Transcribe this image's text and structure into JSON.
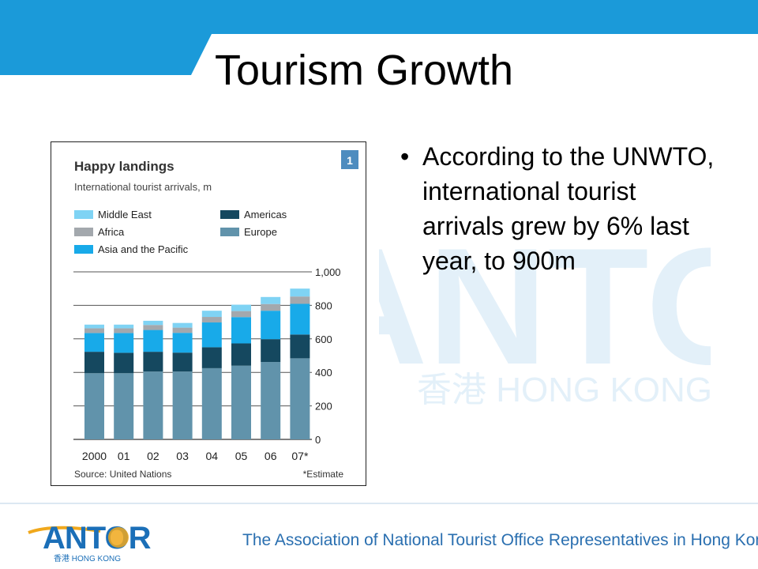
{
  "slide": {
    "title": "Tourism Growth",
    "bullets": [
      "According to the UNWTO, international tourist arrivals grew by 6% last year, to 900m"
    ]
  },
  "watermark": {
    "logo_text": "ANTOR",
    "subtitle": "香港 HONG KONG"
  },
  "footer": {
    "logo_text": "ANTOR",
    "logo_sub": "香港 HONG KONG",
    "tagline": "The Association of National Tourist Office Representatives in Hong Kong"
  },
  "colors": {
    "header_blue": "#1b9ad9",
    "middle_east": "#7fd3f4",
    "africa": "#a3a8ad",
    "asia_pacific": "#18aae9",
    "americas": "#15485f",
    "europe": "#6193ab",
    "badge": "#4d8cbf",
    "footer_text": "#2a6fb0"
  },
  "chart_data": {
    "type": "bar",
    "stacked": true,
    "title": "Happy landings",
    "subtitle": "International tourist arrivals, m",
    "badge": "1",
    "source": "Source: United Nations",
    "footnote": "*Estimate",
    "categories": [
      "2000",
      "01",
      "02",
      "03",
      "04",
      "05",
      "06",
      "07*"
    ],
    "ylim": [
      0,
      1000
    ],
    "yticks": [
      0,
      200,
      400,
      600,
      800,
      1000
    ],
    "ytick_labels": [
      "0",
      "200",
      "400",
      "600",
      "800",
      "1,000"
    ],
    "series": [
      {
        "name": "Europe",
        "color": "#6193ab",
        "values": [
          395,
          395,
          405,
          405,
          425,
          440,
          462,
          484
        ]
      },
      {
        "name": "Americas",
        "color": "#15485f",
        "values": [
          128,
          122,
          118,
          113,
          125,
          133,
          136,
          142
        ]
      },
      {
        "name": "Asia and the Pacific",
        "color": "#18aae9",
        "values": [
          112,
          118,
          130,
          118,
          148,
          157,
          170,
          183
        ]
      },
      {
        "name": "Africa",
        "color": "#a3a8ad",
        "values": [
          28,
          28,
          30,
          31,
          33,
          36,
          40,
          44
        ]
      },
      {
        "name": "Middle East",
        "color": "#7fd3f4",
        "values": [
          22,
          22,
          25,
          28,
          37,
          38,
          42,
          47
        ]
      }
    ],
    "legend": [
      {
        "name": "Middle East",
        "color": "#7fd3f4"
      },
      {
        "name": "Americas",
        "color": "#15485f"
      },
      {
        "name": "Africa",
        "color": "#a3a8ad"
      },
      {
        "name": "Europe",
        "color": "#6193ab"
      },
      {
        "name": "Asia and the Pacific",
        "color": "#18aae9"
      }
    ],
    "legend_position": "top-left",
    "grid": true
  }
}
